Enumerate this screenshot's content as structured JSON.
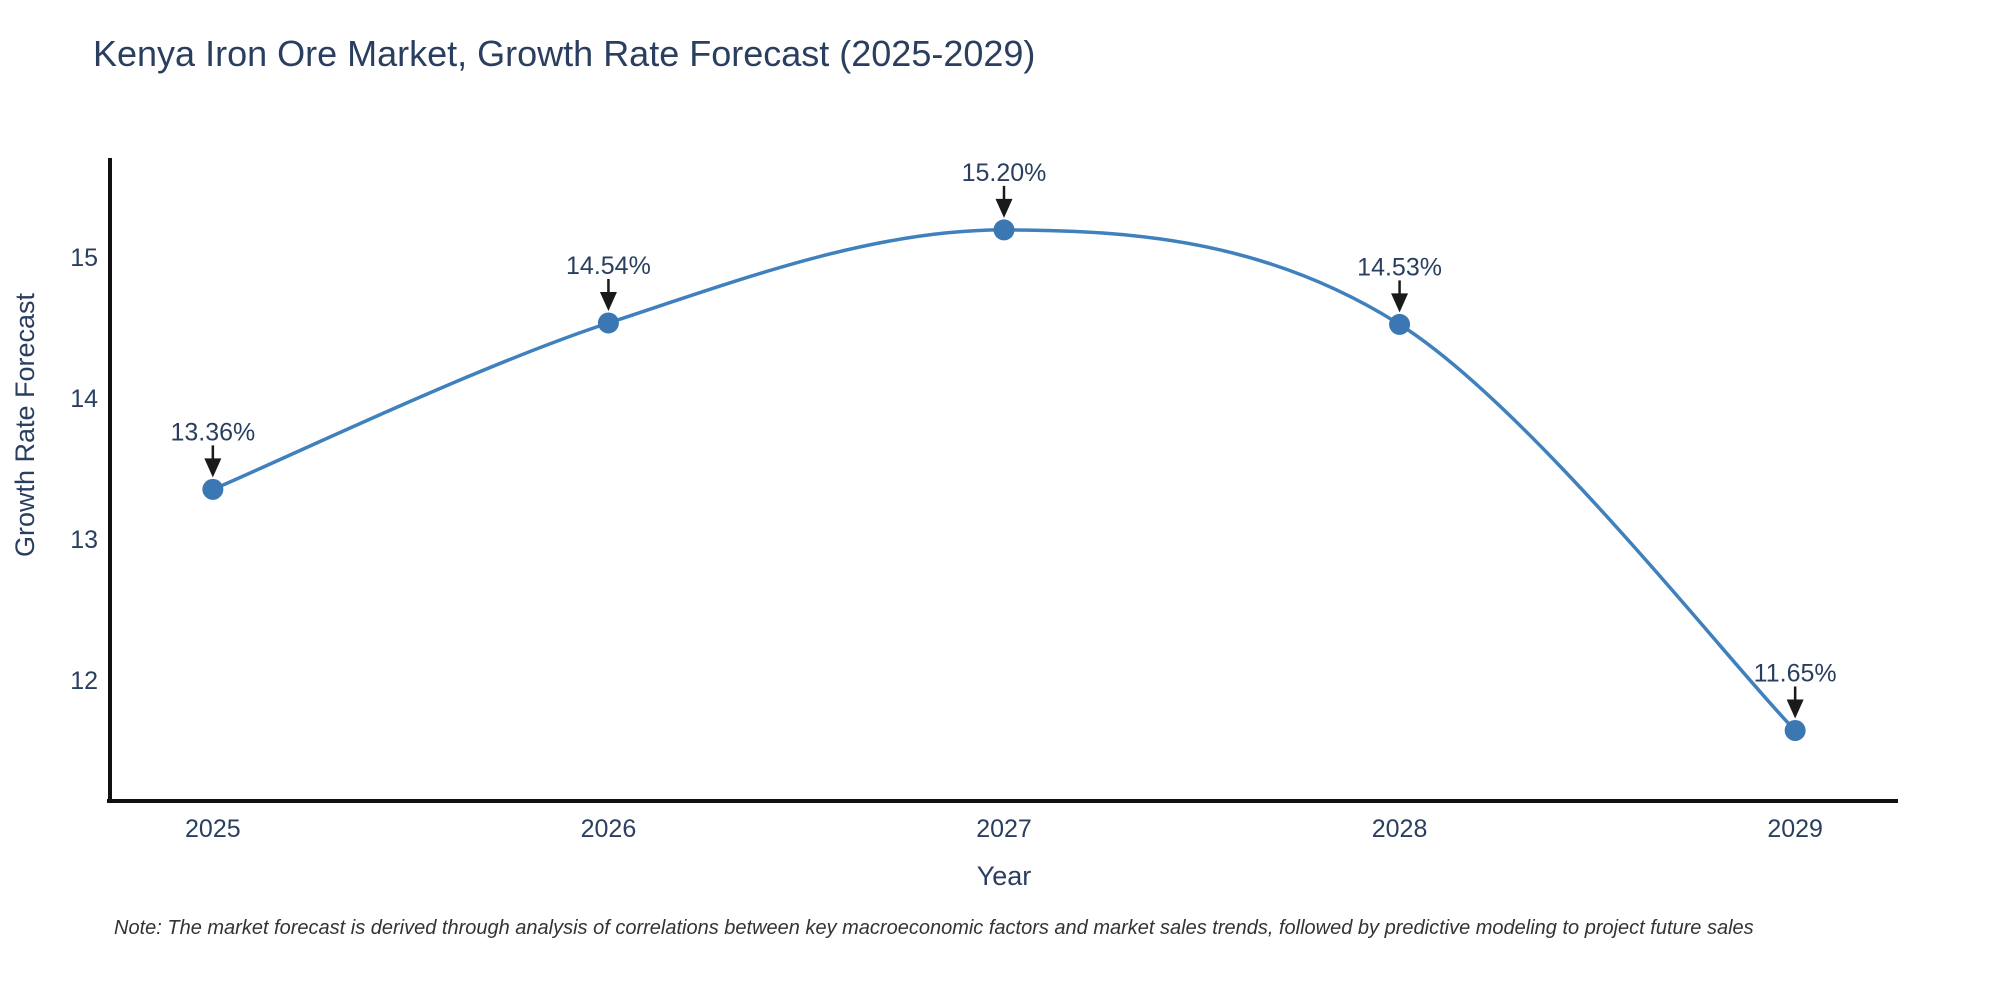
{
  "chart_data": {
    "type": "line",
    "title": "Kenya Iron Ore Market, Growth Rate Forecast (2025-2029)",
    "xlabel": "Year",
    "ylabel": "Growth Rate Forecast",
    "x": [
      2025,
      2026,
      2027,
      2028,
      2029
    ],
    "y": [
      13.36,
      14.54,
      15.2,
      14.53,
      11.65
    ],
    "point_labels": [
      "13.36%",
      "14.54%",
      "15.20%",
      "14.53%",
      "11.65%"
    ],
    "xticks": [
      "2025",
      "2026",
      "2027",
      "2028",
      "2029"
    ],
    "xtick_values": [
      2025,
      2026,
      2027,
      2028,
      2029
    ],
    "yticks": [
      "12",
      "13",
      "14",
      "15"
    ],
    "ytick_values": [
      12,
      13,
      14,
      15
    ],
    "xlim": [
      2024.74,
      2029.26
    ],
    "ylim": [
      11.15,
      15.71
    ],
    "grid": false,
    "legend": false,
    "line_shape": "spline",
    "colors": {
      "line": "#3f80bd",
      "marker": "#3a77b3",
      "text": "#2a3f5f",
      "arrow": "#1a1a1a",
      "axis_line": "#111111",
      "background": "#ffffff",
      "note_text": "#333333"
    }
  },
  "note": "Note: The market forecast is derived through analysis of correlations between key macroeconomic factors and market sales trends, followed by predictive modeling to project future sales"
}
